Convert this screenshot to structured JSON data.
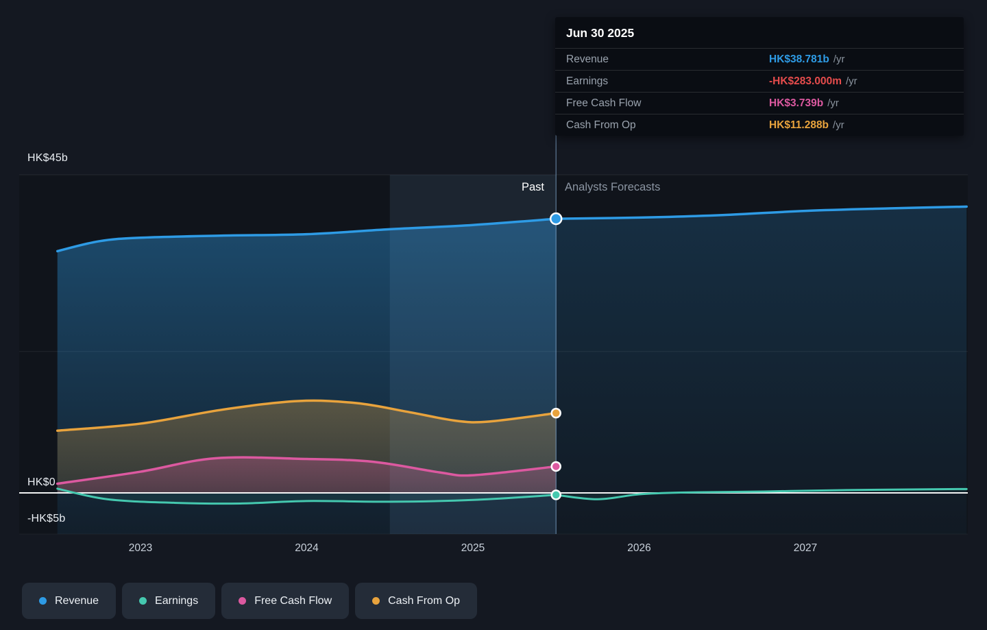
{
  "colors": {
    "revenue": "#2E9BE5",
    "earnings": "#45C8AF",
    "free_cash_flow": "#DC59A0",
    "cash_from_op": "#E8A33D",
    "negative_value": "#E64C4C",
    "page_bg": "#141821",
    "tooltip_bg": "#0A0D13",
    "divider": "#7FA6CC",
    "zero_line": "#FFFFFF",
    "axis_text": "#E9EDF2",
    "tick_text": "#C9D1DB",
    "forecast_text": "#8B95A2",
    "legend_bg": "#242C38"
  },
  "tooltip": {
    "date": "Jun 30 2025",
    "rows": [
      {
        "label": "Revenue",
        "value": "HK$38.781b",
        "suffix": "/yr",
        "color_key": "revenue"
      },
      {
        "label": "Earnings",
        "value": "-HK$283.000m",
        "suffix": "/yr",
        "color_key": "negative_value"
      },
      {
        "label": "Free Cash Flow",
        "value": "HK$3.739b",
        "suffix": "/yr",
        "color_key": "free_cash_flow"
      },
      {
        "label": "Cash From Op",
        "value": "HK$11.288b",
        "suffix": "/yr",
        "color_key": "cash_from_op"
      }
    ]
  },
  "annotations": {
    "past": "Past",
    "forecast": "Analysts Forecasts"
  },
  "y_axis_labels": [
    {
      "text": "HK$45b",
      "value": 45
    },
    {
      "text": "HK$0",
      "value": 0
    },
    {
      "text": "-HK$5b",
      "value": -5
    }
  ],
  "legend": [
    {
      "label": "Revenue",
      "color_key": "revenue"
    },
    {
      "label": "Earnings",
      "color_key": "earnings"
    },
    {
      "label": "Free Cash Flow",
      "color_key": "free_cash_flow"
    },
    {
      "label": "Cash From Op",
      "color_key": "cash_from_op"
    }
  ],
  "chart_data": {
    "type": "line",
    "unit": "HK$ billions per year",
    "x_ticks": [
      2023,
      2024,
      2025,
      2026,
      2027
    ],
    "x_range": [
      2022.5,
      2027.97
    ],
    "ylim": [
      -5.8,
      45
    ],
    "divider_x": 2025.5,
    "divider_date": "Jun 30 2025",
    "highlight_band": [
      2024.5,
      2025.5
    ],
    "grid_values": [
      45,
      20
    ],
    "series": [
      {
        "name": "Revenue",
        "color_key": "revenue",
        "past": [
          [
            2022.5,
            34.2
          ],
          [
            2022.75,
            35.6
          ],
          [
            2023,
            36.1
          ],
          [
            2023.5,
            36.4
          ],
          [
            2024,
            36.6
          ],
          [
            2024.5,
            37.3
          ],
          [
            2025,
            37.9
          ],
          [
            2025.5,
            38.781
          ]
        ],
        "forecast": [
          [
            2025.5,
            38.781
          ],
          [
            2026,
            38.95
          ],
          [
            2026.5,
            39.3
          ],
          [
            2027,
            39.9
          ],
          [
            2027.5,
            40.25
          ],
          [
            2027.97,
            40.5
          ]
        ]
      },
      {
        "name": "Earnings",
        "color_key": "earnings",
        "past": [
          [
            2022.5,
            0.6
          ],
          [
            2022.8,
            -0.9
          ],
          [
            2023.2,
            -1.4
          ],
          [
            2023.6,
            -1.5
          ],
          [
            2024,
            -1.15
          ],
          [
            2024.5,
            -1.25
          ],
          [
            2025,
            -1.0
          ],
          [
            2025.5,
            -0.283
          ]
        ],
        "forecast": [
          [
            2025.5,
            -0.283
          ],
          [
            2025.75,
            -0.9
          ],
          [
            2026,
            -0.2
          ],
          [
            2026.25,
            0.05
          ],
          [
            2026.75,
            0.2
          ],
          [
            2027.25,
            0.4
          ],
          [
            2027.97,
            0.55
          ]
        ]
      },
      {
        "name": "Free Cash Flow",
        "color_key": "free_cash_flow",
        "past": [
          [
            2022.5,
            1.3
          ],
          [
            2023,
            3.0
          ],
          [
            2023.45,
            4.9
          ],
          [
            2024,
            4.8
          ],
          [
            2024.4,
            4.4
          ],
          [
            2024.8,
            2.9
          ],
          [
            2025,
            2.5
          ],
          [
            2025.5,
            3.739
          ]
        ]
      },
      {
        "name": "Cash From Op",
        "color_key": "cash_from_op",
        "past": [
          [
            2022.5,
            8.8
          ],
          [
            2023,
            9.8
          ],
          [
            2023.5,
            11.8
          ],
          [
            2023.95,
            13.0
          ],
          [
            2024.3,
            12.7
          ],
          [
            2024.6,
            11.5
          ],
          [
            2024.9,
            10.2
          ],
          [
            2025.1,
            10.1
          ],
          [
            2025.5,
            11.288
          ]
        ]
      }
    ],
    "markers_at_divider": {
      "revenue": 38.781,
      "earnings": -0.283,
      "free_cash_flow": 3.739,
      "cash_from_op": 11.288
    }
  }
}
